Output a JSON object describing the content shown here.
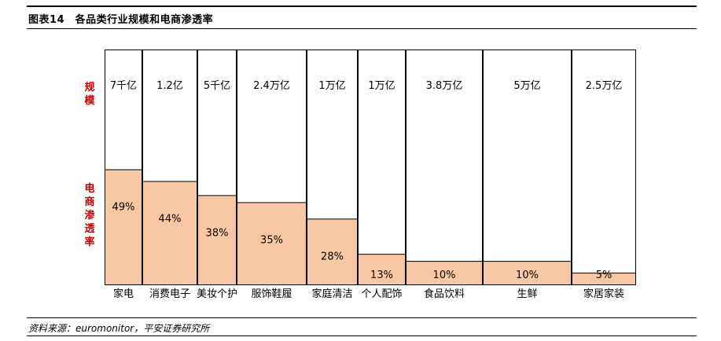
{
  "header": {
    "title": "图表14　各品类行业规模和电商渗透率"
  },
  "side_labels": {
    "scale": "规模",
    "penetration": "电商渗透率"
  },
  "footer": {
    "source": "资料来源：euromonitor，平安证券研究所"
  },
  "colors": {
    "bar_fill": "#f8c8a4",
    "bar_stroke": "#000000",
    "side_label": "#c00000"
  },
  "chart_data": {
    "type": "bar",
    "variant": "marimekko",
    "title": "各品类行业规模和电商渗透率",
    "categories": [
      "家电",
      "消费电子",
      "美妆个护",
      "服饰鞋履",
      "家庭清洁",
      "个人配饰",
      "食品饮料",
      "生鲜",
      "家居家装"
    ],
    "scale_labels": [
      "7千亿",
      "1.2亿",
      "5千亿",
      "2.4万亿",
      "1万亿",
      "1万亿",
      "3.8万亿",
      "5万亿",
      "2.5万亿"
    ],
    "penetration_labels": [
      "49%",
      "44%",
      "38%",
      "35%",
      "28%",
      "13%",
      "10%",
      "10%",
      "5%"
    ],
    "series": [
      {
        "name": "电商渗透率",
        "values": [
          49,
          44,
          38,
          35,
          28,
          13,
          10,
          10,
          5
        ]
      }
    ],
    "ylim": [
      0,
      100
    ],
    "xlabel": "",
    "ylabel": "",
    "grid": false,
    "legend": "none"
  }
}
